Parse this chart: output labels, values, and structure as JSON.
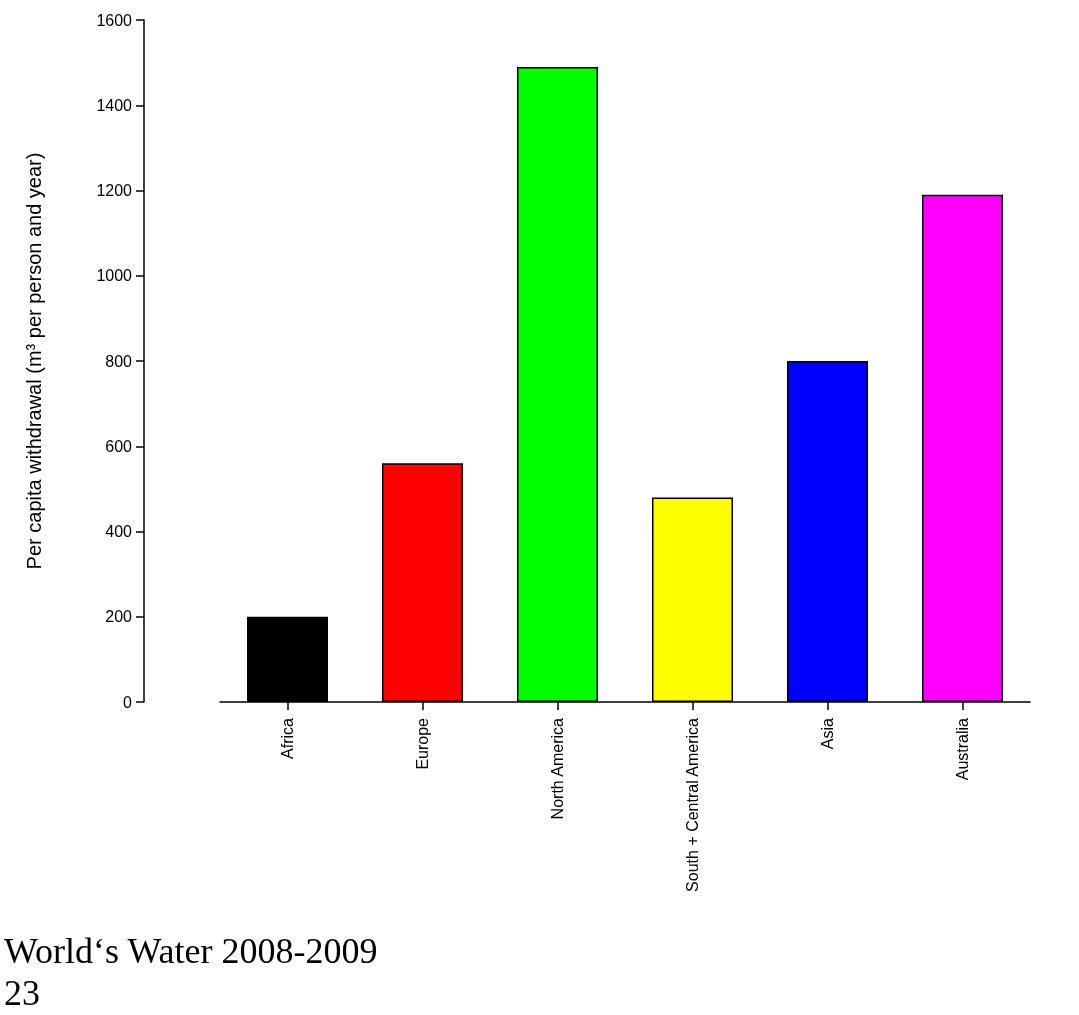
{
  "chart_data": {
    "type": "bar",
    "ylabel": "Per capita withdrawal (m³ per person and year)",
    "categories": [
      "Africa",
      "Europe",
      "North America",
      "South + Central America",
      "Asia",
      "Australia"
    ],
    "values": [
      200,
      560,
      1490,
      480,
      800,
      1190
    ],
    "colors": [
      "#000000",
      "#ff0000",
      "#00ff00",
      "#ffff00",
      "#0000ff",
      "#ff00ff"
    ],
    "ylim": [
      0,
      1600
    ],
    "yticks": [
      0,
      200,
      400,
      600,
      800,
      1000,
      1200,
      1400,
      1600
    ],
    "annotations": [
      "World‘s Water 2008-2009",
      "23"
    ]
  }
}
